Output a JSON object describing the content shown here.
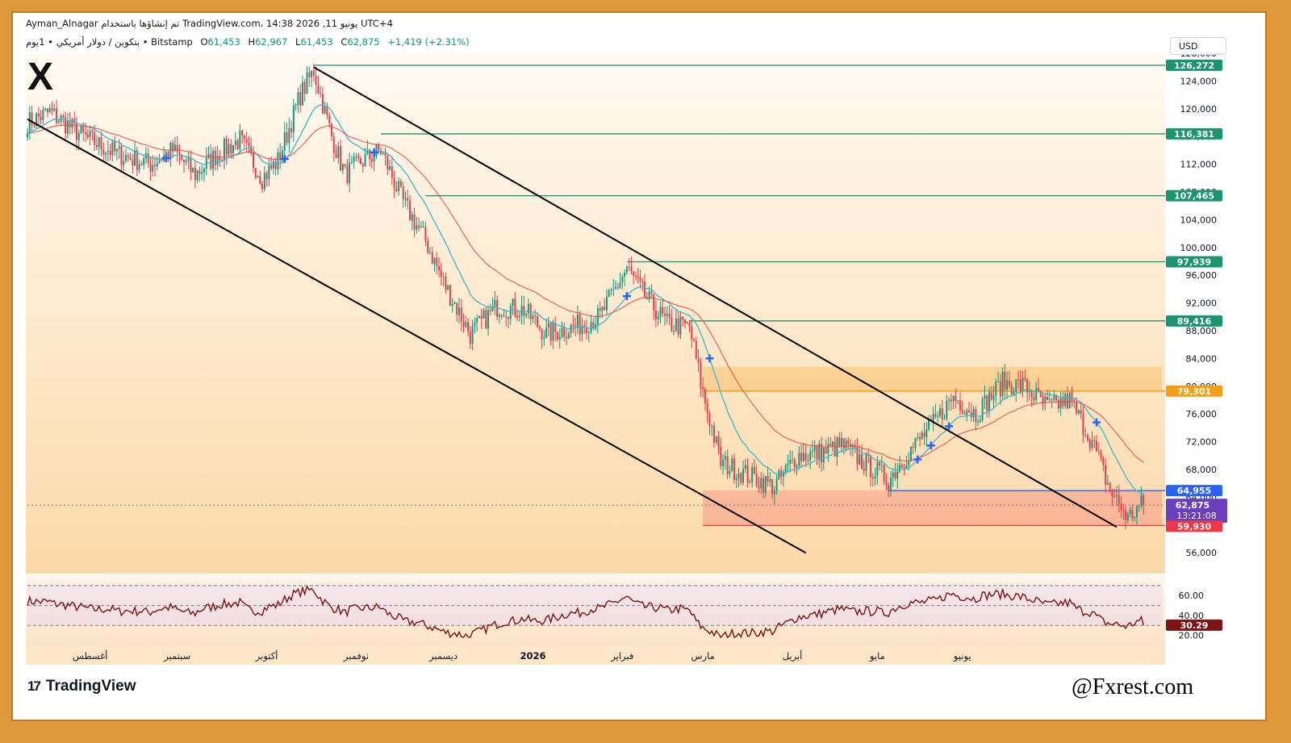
{
  "header": {
    "line1": "Ayman_Alnagar تم إنشاؤها باستخدام TradingView.com، 14:38 2026 ,11 يونيو UTC+4",
    "symbol": "بتكوين / دولار أمريكي • 1يوم • Bitstamp",
    "o_label": "O",
    "o_value": "61,453",
    "h_label": "H",
    "h_value": "62,967",
    "l_label": "L",
    "l_value": "61,453",
    "c_label": "C",
    "c_value": "62,875",
    "change": "+1,419 (+2.31%)"
  },
  "currency_button": "USD",
  "footer": {
    "logo_text": "TradingView",
    "logo_mark": "17",
    "watermark": "@Fxrest.com",
    "brand_mark": "X"
  },
  "colors": {
    "up": "#089981",
    "down": "#f23645",
    "ema_fast": "#3bb8c6",
    "ema_slow": "#e04f4f",
    "level": "#1b9470",
    "orange": "#f59f15",
    "blue": "#2962ff",
    "rsi": "#7b1414",
    "bg_top": "#fff7ea",
    "bg_bottom": "#fddcae"
  },
  "chart_data": {
    "type": "candlestick",
    "y_range": [
      53000,
      128000
    ],
    "y_ticks": [
      "128,000",
      "124,000",
      "120,000",
      "116,000",
      "112,000",
      "108,000",
      "104,000",
      "100,000",
      "96,000",
      "92,000",
      "88,000",
      "84,000",
      "80,000",
      "76,000",
      "72,000",
      "68,000",
      "64,000",
      "60,000",
      "56,000"
    ],
    "x_labels": [
      "أغسطس",
      "سبتمبر",
      "أكتوبر",
      "نوفمبر",
      "ديسمبر",
      "2026",
      "فبراير",
      "مارس",
      "أبريل",
      "مايو",
      "يونيو"
    ],
    "price_anchors": [
      [
        0,
        118000
      ],
      [
        10,
        119500
      ],
      [
        25,
        116000
      ],
      [
        40,
        113500
      ],
      [
        55,
        112000
      ],
      [
        65,
        114000
      ],
      [
        75,
        110500
      ],
      [
        85,
        113500
      ],
      [
        95,
        115500
      ],
      [
        105,
        110000
      ],
      [
        112,
        112500
      ],
      [
        122,
        122000
      ],
      [
        128,
        125500
      ],
      [
        136,
        116000
      ],
      [
        142,
        110500
      ],
      [
        150,
        112500
      ],
      [
        158,
        114000
      ],
      [
        168,
        106500
      ],
      [
        178,
        101000
      ],
      [
        186,
        95000
      ],
      [
        198,
        87500
      ],
      [
        210,
        91500
      ],
      [
        222,
        91000
      ],
      [
        232,
        87500
      ],
      [
        244,
        88500
      ],
      [
        256,
        90000
      ],
      [
        262,
        93500
      ],
      [
        268,
        97000
      ],
      [
        276,
        93000
      ],
      [
        286,
        89000
      ],
      [
        296,
        88500
      ],
      [
        302,
        79000
      ],
      [
        310,
        69000
      ],
      [
        320,
        67500
      ],
      [
        334,
        65500
      ],
      [
        344,
        70000
      ],
      [
        356,
        70500
      ],
      [
        364,
        71500
      ],
      [
        374,
        69000
      ],
      [
        385,
        66500
      ],
      [
        394,
        70500
      ],
      [
        405,
        74500
      ],
      [
        414,
        78500
      ],
      [
        424,
        76000
      ],
      [
        436,
        80500
      ],
      [
        446,
        80000
      ],
      [
        456,
        77000
      ],
      [
        466,
        78000
      ],
      [
        476,
        72000
      ],
      [
        484,
        65000
      ],
      [
        492,
        61000
      ],
      [
        498,
        62875
      ]
    ],
    "last_close": 62875,
    "levels": [
      {
        "value": 126272,
        "label": "126,272"
      },
      {
        "value": 116381,
        "label": "116,381"
      },
      {
        "value": 107465,
        "label": "107,465"
      },
      {
        "value": 97939,
        "label": "97,939"
      },
      {
        "value": 89416,
        "label": "89,416"
      }
    ],
    "resistance": {
      "value": 79301,
      "label": "79,301",
      "zone": [
        79301,
        82800
      ]
    },
    "blue_level": {
      "value": 64955,
      "label": "64,955"
    },
    "support": {
      "value": 59930,
      "label": "59,930",
      "zone": [
        59930,
        65000
      ]
    },
    "price_tag": {
      "value": 62875,
      "label": "62,875",
      "timer": "13:21:08"
    },
    "channel": {
      "upper": [
        [
          128,
          126000
        ],
        [
          487,
          59700
        ]
      ],
      "lower": [
        [
          0,
          118500
        ],
        [
          348,
          56000
        ]
      ]
    },
    "rsi": {
      "range": [
        10,
        78
      ],
      "levels": [
        70,
        50,
        30
      ],
      "tick_labels": [
        "60.00",
        "40.00",
        "20.00"
      ],
      "last": 30.29,
      "last_label": "30.29"
    }
  }
}
